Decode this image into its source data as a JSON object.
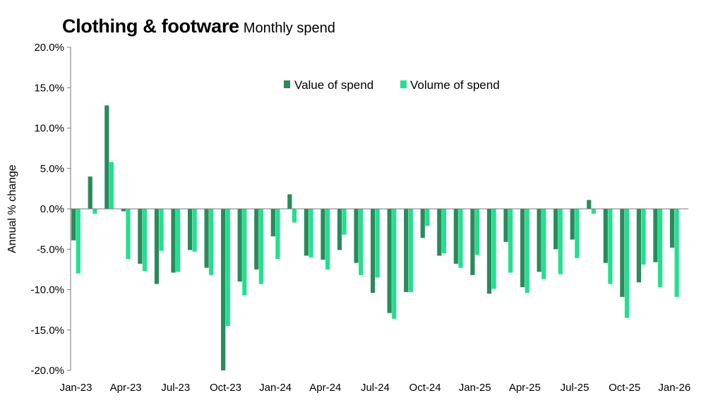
{
  "chart_data": {
    "type": "bar",
    "title": "Clothing & footware",
    "subtitle": "Monthly spend",
    "ylabel": "Annual % change",
    "xlabel": "",
    "ylim": [
      -20,
      20
    ],
    "yticks": [
      "20.0%",
      "15.0%",
      "10.0%",
      "5.0%",
      "0.0%",
      "-5.0%",
      "-10.0%",
      "-15.0%",
      "-20.0%"
    ],
    "grid": false,
    "legend_position": "top-center",
    "x_tick_labels": [
      "Jan-23",
      "Apr-23",
      "Jul-23",
      "Oct-23",
      "Jan-24",
      "Apr-24",
      "Jul-24",
      "Oct-24",
      "Jan-25",
      "Apr-25",
      "Jul-25",
      "Oct-25",
      "Jan-26"
    ],
    "categories": [
      "Jan-23",
      "Feb-23",
      "Mar-23",
      "Apr-23",
      "May-23",
      "Jun-23",
      "Jul-23",
      "Aug-23",
      "Sep-23",
      "Oct-23",
      "Nov-23",
      "Dec-23",
      "Jan-24",
      "Feb-24",
      "Mar-24",
      "Apr-24",
      "May-24",
      "Jun-24",
      "Jul-24",
      "Aug-24",
      "Sep-24",
      "Oct-24",
      "Nov-24",
      "Dec-24",
      "Jan-25",
      "Feb-25",
      "Mar-25",
      "Apr-25",
      "May-25",
      "Jun-25",
      "Jul-25",
      "Aug-25",
      "Sep-25",
      "Oct-25",
      "Nov-25",
      "Dec-25",
      "Jan-26"
    ],
    "series": [
      {
        "name": "Value of spend",
        "color": "#2a8a5c",
        "values": [
          -3.9,
          4.0,
          12.8,
          -0.3,
          -6.8,
          -9.3,
          -7.9,
          -5.1,
          -7.3,
          -20.0,
          -9.0,
          -7.5,
          -3.4,
          1.8,
          -5.8,
          -6.3,
          -5.1,
          -6.7,
          -10.4,
          -12.9,
          -10.3,
          -3.6,
          -5.8,
          -6.8,
          -8.2,
          -10.5,
          -4.1,
          -9.7,
          -7.8,
          -5.0,
          -3.8,
          1.1,
          -6.7,
          -10.9,
          -9.1,
          -6.6,
          -4.8
        ]
      },
      {
        "name": "Volume of spend",
        "color": "#22e08f",
        "values": [
          -8.0,
          -0.6,
          5.8,
          -6.2,
          -7.7,
          -5.2,
          -7.8,
          -5.3,
          -8.2,
          -14.5,
          -10.7,
          -9.3,
          -6.2,
          -1.7,
          -6.0,
          -7.5,
          -3.2,
          -8.2,
          -8.5,
          -13.6,
          -10.3,
          -2.1,
          -5.5,
          -7.3,
          -5.7,
          -9.9,
          -7.9,
          -10.4,
          -8.7,
          -8.1,
          -6.1,
          -0.6,
          -9.3,
          -13.5,
          -6.9,
          -9.7,
          -10.9
        ]
      }
    ]
  }
}
